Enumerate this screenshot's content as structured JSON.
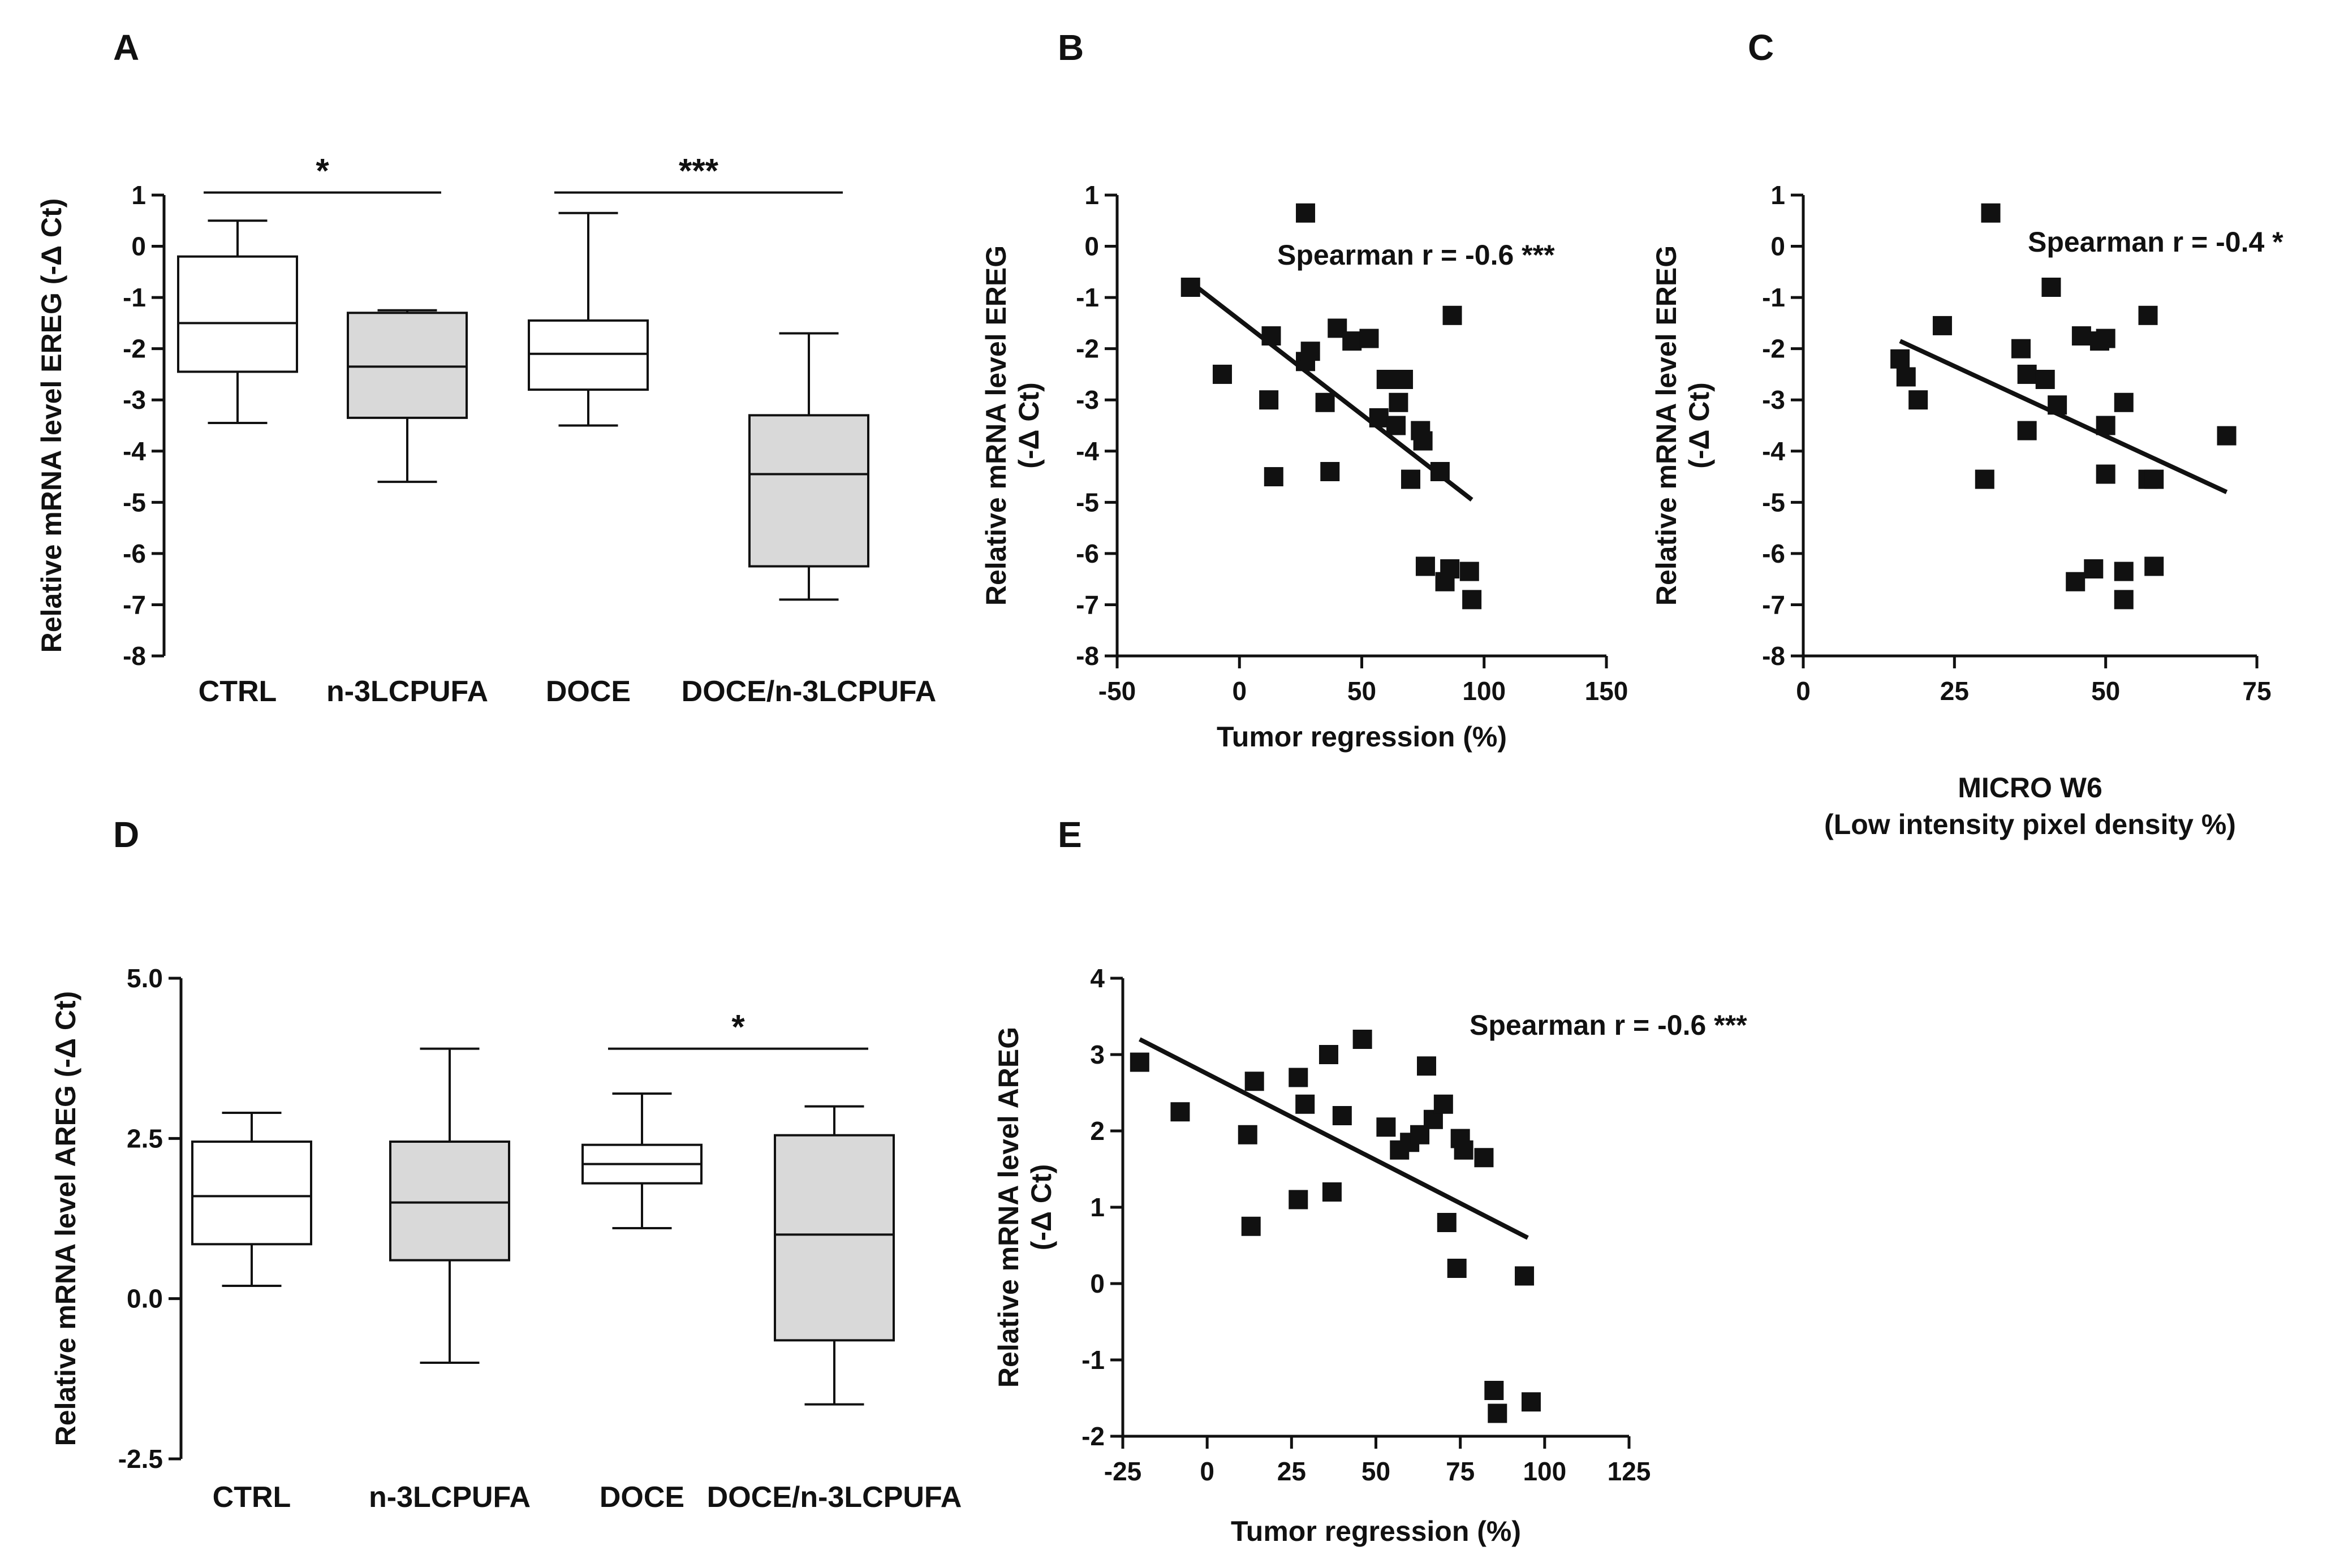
{
  "figure": {
    "panels": [
      {
        "id": "A",
        "label": "A"
      },
      {
        "id": "B",
        "label": "B"
      },
      {
        "id": "C",
        "label": "C"
      },
      {
        "id": "D",
        "label": "D"
      },
      {
        "id": "E",
        "label": "E"
      }
    ]
  },
  "chart_data": [
    {
      "panel": "A",
      "type": "box",
      "ylabel": "Relative mRNA level EREG (-Δ Ct)",
      "ylim": [
        -8,
        1
      ],
      "yticks": [
        1,
        0,
        -1,
        -2,
        -3,
        -4,
        -5,
        -6,
        -7,
        -8
      ],
      "categories": [
        "CTRL",
        "n-3LCPUFA",
        "DOCE",
        "DOCE/n-3LCPUFA"
      ],
      "fills": [
        "#ffffff",
        "#d9d9d9",
        "#ffffff",
        "#d9d9d9"
      ],
      "boxes": [
        {
          "min": -3.45,
          "q1": -2.45,
          "median": -1.5,
          "q3": -0.2,
          "max": 0.5
        },
        {
          "min": -4.6,
          "q1": -3.35,
          "median": -2.35,
          "q3": -1.3,
          "max": -1.25
        },
        {
          "min": -3.5,
          "q1": -2.8,
          "median": -2.1,
          "q3": -1.45,
          "max": 0.65
        },
        {
          "min": -6.9,
          "q1": -6.25,
          "median": -4.45,
          "q3": -3.3,
          "max": -1.7
        }
      ],
      "significance": [
        {
          "from": 0,
          "to": 1,
          "label": "*",
          "y": 1.05
        },
        {
          "from": 2,
          "to": 3,
          "label": "***",
          "y": 1.05
        }
      ]
    },
    {
      "panel": "B",
      "type": "scatter",
      "xlabel": "Tumor regression (%)",
      "ylabel": [
        "Relative mRNA level EREG",
        "(-Δ Ct)"
      ],
      "xlim": [
        -50,
        150
      ],
      "ylim": [
        -8,
        1
      ],
      "xticks": [
        -50,
        0,
        50,
        100,
        150
      ],
      "yticks": [
        1,
        0,
        -1,
        -2,
        -3,
        -4,
        -5,
        -6,
        -7,
        -8
      ],
      "annotation": "Spearman r = -0.6 ***",
      "fit": {
        "x1": -20,
        "y1": -0.7,
        "x2": 95,
        "y2": -4.95
      },
      "points": [
        [
          -20,
          -0.8
        ],
        [
          27,
          0.65
        ],
        [
          -7,
          -2.5
        ],
        [
          12,
          -3.0
        ],
        [
          13,
          -1.75
        ],
        [
          14,
          -4.5
        ],
        [
          27,
          -2.25
        ],
        [
          29,
          -2.05
        ],
        [
          35,
          -3.05
        ],
        [
          37,
          -4.4
        ],
        [
          40,
          -1.6
        ],
        [
          46,
          -1.85
        ],
        [
          53,
          -1.8
        ],
        [
          57,
          -3.35
        ],
        [
          60,
          -2.6
        ],
        [
          64,
          -3.5
        ],
        [
          65,
          -3.05
        ],
        [
          67,
          -2.6
        ],
        [
          70,
          -4.55
        ],
        [
          74,
          -3.6
        ],
        [
          75,
          -3.8
        ],
        [
          76,
          -6.25
        ],
        [
          82,
          -4.4
        ],
        [
          84,
          -6.55
        ],
        [
          86,
          -6.3
        ],
        [
          87,
          -1.35
        ],
        [
          94,
          -6.35
        ],
        [
          95,
          -6.9
        ]
      ]
    },
    {
      "panel": "C",
      "type": "scatter",
      "xlabel": [
        "MICRO W6",
        "(Low intensity pixel density %)"
      ],
      "ylabel": [
        "Relative mRNA level EREG",
        "(-Δ Ct)"
      ],
      "xlim": [
        0,
        75
      ],
      "ylim": [
        -8,
        1
      ],
      "xticks": [
        0,
        25,
        50,
        75
      ],
      "yticks": [
        1,
        0,
        -1,
        -2,
        -3,
        -4,
        -5,
        -6,
        -7,
        -8
      ],
      "annotation": "Spearman r = -0.4 *",
      "fit": {
        "x1": 16,
        "y1": -1.85,
        "x2": 70,
        "y2": -4.8
      },
      "points": [
        [
          16,
          -2.2
        ],
        [
          17,
          -2.55
        ],
        [
          19,
          -3.0
        ],
        [
          23,
          -1.55
        ],
        [
          30,
          -4.55
        ],
        [
          31,
          0.65
        ],
        [
          36,
          -2.0
        ],
        [
          37,
          -2.5
        ],
        [
          37,
          -3.6
        ],
        [
          40,
          -2.6
        ],
        [
          41,
          -0.8
        ],
        [
          42,
          -3.1
        ],
        [
          45,
          -6.55
        ],
        [
          46,
          -1.75
        ],
        [
          48,
          -6.3
        ],
        [
          49,
          -1.85
        ],
        [
          50,
          -1.8
        ],
        [
          50,
          -4.45
        ],
        [
          50,
          -3.5
        ],
        [
          53,
          -3.05
        ],
        [
          53,
          -6.35
        ],
        [
          53,
          -6.9
        ],
        [
          57,
          -1.35
        ],
        [
          57,
          -4.55
        ],
        [
          58,
          -4.55
        ],
        [
          58,
          -6.25
        ],
        [
          70,
          -3.7
        ]
      ]
    },
    {
      "panel": "D",
      "type": "box",
      "ylabel": "Relative mRNA level AREG (-Δ Ct)",
      "ylim": [
        -2.5,
        5.0
      ],
      "yticks": [
        5.0,
        2.5,
        0.0,
        -2.5
      ],
      "ytick_labels": [
        "5.0",
        "2.5",
        "0.0",
        "-2.5"
      ],
      "categories": [
        "CTRL",
        "n-3LCPUFA",
        "DOCE",
        "DOCE/n-3LCPUFA"
      ],
      "fills": [
        "#ffffff",
        "#d9d9d9",
        "#ffffff",
        "#d9d9d9"
      ],
      "boxes": [
        {
          "min": 0.2,
          "q1": 0.85,
          "median": 1.6,
          "q3": 2.45,
          "max": 2.9
        },
        {
          "min": -1.0,
          "q1": 0.6,
          "median": 1.5,
          "q3": 2.45,
          "max": 3.9
        },
        {
          "min": 1.1,
          "q1": 1.8,
          "median": 2.1,
          "q3": 2.4,
          "max": 3.2
        },
        {
          "min": -1.65,
          "q1": -0.65,
          "median": 1.0,
          "q3": 2.55,
          "max": 3.0
        }
      ],
      "significance": [
        {
          "from": 2,
          "to": 3,
          "label": "*",
          "y": 3.9
        }
      ]
    },
    {
      "panel": "E",
      "type": "scatter",
      "xlabel": "Tumor regression (%)",
      "ylabel": [
        "Relative mRNA level AREG",
        "(-Δ Ct)"
      ],
      "xlim": [
        -25,
        125
      ],
      "ylim": [
        -2,
        4
      ],
      "xticks": [
        -25,
        0,
        25,
        50,
        75,
        100,
        125
      ],
      "yticks": [
        4,
        3,
        2,
        1,
        0,
        -1,
        -2
      ],
      "annotation": "Spearman r = -0.6 ***",
      "fit": {
        "x1": -20,
        "y1": 3.2,
        "x2": 95,
        "y2": 0.6
      },
      "points": [
        [
          -20,
          2.9
        ],
        [
          -8,
          2.25
        ],
        [
          12,
          1.95
        ],
        [
          13,
          0.75
        ],
        [
          14,
          2.65
        ],
        [
          27,
          2.7
        ],
        [
          27,
          1.1
        ],
        [
          29,
          2.35
        ],
        [
          36,
          3.0
        ],
        [
          37,
          1.2
        ],
        [
          40,
          2.2
        ],
        [
          46,
          3.2
        ],
        [
          53,
          2.05
        ],
        [
          57,
          1.75
        ],
        [
          60,
          1.85
        ],
        [
          63,
          1.95
        ],
        [
          65,
          2.85
        ],
        [
          67,
          2.15
        ],
        [
          70,
          2.35
        ],
        [
          71,
          0.8
        ],
        [
          74,
          0.2
        ],
        [
          75,
          1.9
        ],
        [
          76,
          1.75
        ],
        [
          82,
          1.65
        ],
        [
          85,
          -1.4
        ],
        [
          86,
          -1.7
        ],
        [
          94,
          0.1
        ],
        [
          96,
          -1.55
        ]
      ]
    }
  ]
}
